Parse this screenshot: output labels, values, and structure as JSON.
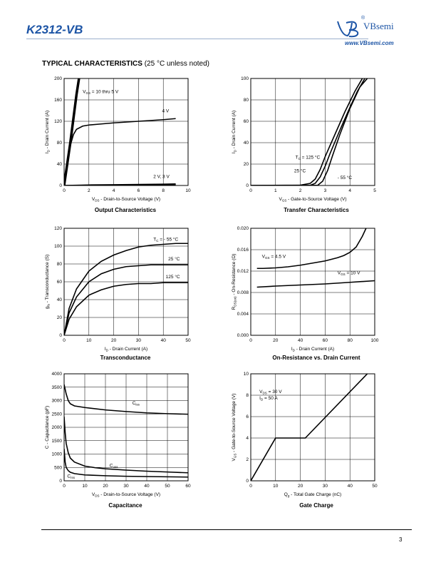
{
  "header": {
    "part_number": "K2312-VB",
    "brand": "VBsemi",
    "registered": "®",
    "website": "www.VBsemi.com"
  },
  "section": {
    "title": "TYPICAL CHARACTERISTICS",
    "note": "(25 °C unless noted)"
  },
  "footer": {
    "page_number": "3"
  },
  "chart_data": [
    {
      "id": "output",
      "type": "line",
      "title": "Output Characteristics",
      "xlabel_main": "V",
      "xlabel_sub": "DS",
      "xlabel_rest": " - Drain-to-Source Voltage (V)",
      "ylabel_main": "I",
      "ylabel_sub": "D",
      "ylabel_rest": " - Drain Current (A)",
      "xlim": [
        0,
        10
      ],
      "ylim": [
        0,
        200
      ],
      "xticks": [
        0,
        2,
        4,
        6,
        8,
        10
      ],
      "yticks": [
        0,
        40,
        80,
        120,
        160,
        200
      ],
      "series": [
        {
          "x": [
            0,
            0.5,
            1.0,
            1.2
          ],
          "y": [
            0,
            80,
            170,
            200
          ]
        },
        {
          "x": [
            0,
            0.25,
            0.5,
            0.75,
            1,
            1.5,
            2,
            3,
            4,
            6,
            8,
            9
          ],
          "y": [
            0,
            40,
            75,
            95,
            105,
            111,
            113,
            115,
            117,
            120,
            123,
            125
          ]
        },
        {
          "x": [
            0,
            2,
            4,
            6,
            8,
            9
          ],
          "y": [
            0,
            1,
            1.5,
            2,
            2.5,
            3
          ]
        },
        {
          "x": [
            0,
            2,
            4,
            6,
            8,
            9
          ],
          "y": [
            0,
            0.5,
            0.8,
            1,
            1.2,
            1.4
          ]
        }
      ],
      "annotations": [
        {
          "main": "V",
          "sub": "GS",
          "rest": " = 10 thru 5 V",
          "x": 1.5,
          "y": 173
        },
        {
          "main": "4 V",
          "sub": "",
          "rest": "",
          "x": 7.9,
          "y": 137
        },
        {
          "main": "2 V, 3 V",
          "sub": "",
          "rest": "",
          "x": 7.2,
          "y": 14
        }
      ]
    },
    {
      "id": "transfer",
      "type": "line",
      "title": "Transfer Characteristics",
      "xlabel_main": "V",
      "xlabel_sub": "GS",
      "xlabel_rest": " - Gate-to-Source Voltage (V)",
      "ylabel_main": "I",
      "ylabel_sub": "D",
      "ylabel_rest": " - Drain Current (A)",
      "xlim": [
        0,
        5
      ],
      "ylim": [
        0,
        100
      ],
      "xticks": [
        0,
        1,
        2,
        3,
        4,
        5
      ],
      "yticks": [
        0,
        20,
        40,
        60,
        80,
        100
      ],
      "series": [
        {
          "name": "T_C = 125 °C",
          "x": [
            0,
            2.0,
            2.4,
            2.6,
            2.8,
            3.0,
            3.4,
            3.8,
            4.2,
            4.5
          ],
          "y": [
            0,
            0.3,
            2,
            6,
            15,
            27,
            48,
            69,
            88,
            100
          ]
        },
        {
          "name": "25 °C",
          "x": [
            0,
            2.4,
            2.6,
            2.8,
            3.0,
            3.2,
            3.6,
            4.0,
            4.3,
            4.6
          ],
          "y": [
            0,
            0.2,
            2,
            8,
            18,
            30,
            52,
            73,
            88,
            100
          ]
        },
        {
          "name": "- 55 °C",
          "x": [
            0,
            2.7,
            2.9,
            3.1,
            3.3,
            3.6,
            4.0,
            4.4,
            4.7
          ],
          "y": [
            0,
            0.2,
            4,
            14,
            28,
            48,
            72,
            92,
            100
          ]
        }
      ],
      "annotations": [
        {
          "main": "T",
          "sub": "C",
          "rest": " = 125 °C",
          "x": 1.8,
          "y": 25
        },
        {
          "main": "25 °C",
          "sub": "",
          "rest": "",
          "x": 1.75,
          "y": 12.5
        },
        {
          "main": "- 55 °C",
          "sub": "",
          "rest": "",
          "x": 3.5,
          "y": 6
        }
      ]
    },
    {
      "id": "transconductance",
      "type": "line",
      "title": "Transconductance",
      "xlabel_main": "I",
      "xlabel_sub": "D",
      "xlabel_rest": " - Drain Current (A)",
      "ylabel_main": "g",
      "ylabel_sub": "fs",
      "ylabel_rest": " - Transconductance (S)",
      "xlim": [
        0,
        50
      ],
      "ylim": [
        0,
        120
      ],
      "xticks": [
        0,
        10,
        20,
        30,
        40,
        50
      ],
      "yticks": [
        0,
        20,
        40,
        60,
        80,
        100,
        120
      ],
      "series": [
        {
          "name": "T_C = - 55 °C",
          "x": [
            0,
            2,
            5,
            10,
            15,
            20,
            25,
            30,
            35,
            40,
            45,
            50
          ],
          "y": [
            0,
            30,
            52,
            72,
            83,
            90,
            95,
            99,
            101,
            102,
            103,
            103
          ]
        },
        {
          "name": "25 °C",
          "x": [
            0,
            2,
            5,
            10,
            15,
            20,
            25,
            30,
            35,
            40,
            45,
            50
          ],
          "y": [
            0,
            25,
            43,
            60,
            69,
            74,
            77,
            78,
            79,
            79,
            79,
            79
          ]
        },
        {
          "name": "125 °C",
          "x": [
            0,
            2,
            5,
            10,
            15,
            20,
            25,
            30,
            35,
            40,
            45,
            50
          ],
          "y": [
            0,
            18,
            32,
            45,
            51,
            55,
            57,
            58,
            58,
            59,
            59,
            59
          ]
        }
      ],
      "annotations": [
        {
          "main": "T",
          "sub": "C",
          "rest": " = - 55 °C",
          "x": 36,
          "y": 106
        },
        {
          "main": "25 °C",
          "sub": "",
          "rest": "",
          "x": 42,
          "y": 84
        },
        {
          "main": "125 °C",
          "sub": "",
          "rest": "",
          "x": 41,
          "y": 64
        }
      ]
    },
    {
      "id": "on-resistance",
      "type": "line",
      "title": "On-Resistance vs. Drain Current",
      "xlabel_main": "I",
      "xlabel_sub": "D",
      "xlabel_rest": " - Drain Current (A)",
      "ylabel_main": "R",
      "ylabel_sub": "DS(on)",
      "ylabel_rest": " - On-Resistance (Ω)",
      "xlim": [
        0,
        100
      ],
      "ylim": [
        0,
        0.02
      ],
      "xticks": [
        0,
        20,
        40,
        60,
        80,
        100
      ],
      "yticks": [
        0.0,
        0.004,
        0.008,
        0.012,
        0.016,
        0.02
      ],
      "ytick_labels": [
        "0.000",
        "0.004",
        "0.008",
        "0.012",
        "0.016",
        "0.020"
      ],
      "series": [
        {
          "name": "V_GS = 4.5 V",
          "x": [
            5,
            10,
            20,
            30,
            40,
            50,
            60,
            70,
            75,
            80,
            85,
            90,
            93
          ],
          "y": [
            0.0125,
            0.0125,
            0.0126,
            0.0128,
            0.0131,
            0.0135,
            0.0139,
            0.0145,
            0.0149,
            0.0155,
            0.0165,
            0.0185,
            0.02
          ]
        },
        {
          "name": "V_GS = 10 V",
          "x": [
            5,
            20,
            40,
            60,
            80,
            100
          ],
          "y": [
            0.009,
            0.0092,
            0.0094,
            0.0096,
            0.0099,
            0.0102
          ]
        }
      ],
      "annotations": [
        {
          "main": "V",
          "sub": "GS",
          "rest": " = 4.5 V",
          "x": 9,
          "y": 0.0145
        },
        {
          "main": "V",
          "sub": "GS",
          "rest": " = 10 V",
          "x": 70,
          "y": 0.0114
        }
      ]
    },
    {
      "id": "capacitance",
      "type": "line",
      "title": "Capacitance",
      "xlabel_main": "V",
      "xlabel_sub": "DS",
      "xlabel_rest": " - Drain-to-Source Voltage (V)",
      "ylabel_main": "C",
      "ylabel_sub": "",
      "ylabel_rest": " - Capacitance (pF)",
      "xlim": [
        0,
        60
      ],
      "ylim": [
        0,
        4000
      ],
      "xticks": [
        0,
        10,
        20,
        30,
        40,
        50,
        60
      ],
      "yticks": [
        0,
        500,
        1000,
        1500,
        2000,
        2500,
        3000,
        3500,
        4000
      ],
      "series": [
        {
          "name": "Ciss",
          "x": [
            0,
            1,
            2,
            3,
            5,
            10,
            20,
            30,
            40,
            50,
            60
          ],
          "y": [
            3600,
            3250,
            3000,
            2880,
            2800,
            2740,
            2650,
            2590,
            2540,
            2510,
            2490
          ]
        },
        {
          "name": "Coss",
          "x": [
            0,
            0.5,
            1,
            2,
            3,
            5,
            10,
            15,
            20,
            30,
            40,
            50,
            60
          ],
          "y": [
            2400,
            1800,
            1400,
            1050,
            850,
            700,
            550,
            490,
            450,
            400,
            360,
            330,
            300
          ]
        },
        {
          "name": "Crss",
          "x": [
            0,
            0.5,
            1,
            2,
            3,
            5,
            10,
            20,
            30,
            40,
            50,
            60
          ],
          "y": [
            1200,
            700,
            500,
            380,
            320,
            270,
            220,
            190,
            170,
            160,
            150,
            140
          ]
        }
      ],
      "annotations": [
        {
          "main": "C",
          "sub": "iss",
          "rest": "",
          "x": 33,
          "y": 2850
        },
        {
          "main": "C",
          "sub": "oss",
          "rest": "",
          "x": 22,
          "y": 520
        },
        {
          "main": "C",
          "sub": "rss",
          "rest": "",
          "x": 1.5,
          "y": 120
        }
      ]
    },
    {
      "id": "gate-charge",
      "type": "line",
      "title": "Gate Charge",
      "xlabel_main": "Q",
      "xlabel_sub": "g",
      "xlabel_rest": " - Total Gate Charge (nC)",
      "ylabel_main": "V",
      "ylabel_sub": "GS",
      "ylabel_rest": " - Gate-to-Source Voltage (V)",
      "xlim": [
        0,
        50
      ],
      "ylim": [
        0,
        10
      ],
      "xticks": [
        0,
        10,
        20,
        30,
        40,
        50
      ],
      "yticks": [
        0,
        2,
        4,
        6,
        8,
        10
      ],
      "series": [
        {
          "x": [
            0,
            10,
            22,
            47
          ],
          "y": [
            0,
            4,
            4,
            10
          ]
        }
      ],
      "annotations": [
        {
          "main": "V",
          "sub": "DS",
          "rest": " = 30 V",
          "x": 3.5,
          "y": 8.2
        },
        {
          "main": "I",
          "sub": "D",
          "rest": " = 50 A",
          "x": 3.5,
          "y": 7.6
        }
      ]
    }
  ]
}
